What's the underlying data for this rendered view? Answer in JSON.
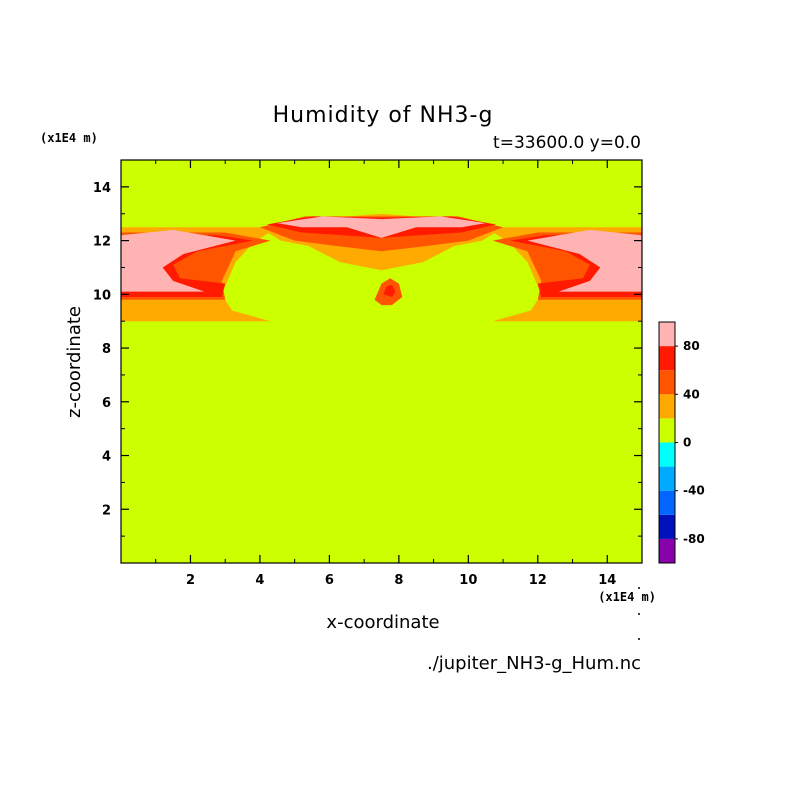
{
  "chart_data": {
    "type": "heatmap",
    "title": "Humidity of NH3-g",
    "subtitle": "t=33600.0 y=0.0",
    "xlabel": "x-coordinate",
    "ylabel": "z-coordinate",
    "x_unit": "(x1E4 m)",
    "y_unit": "(x1E4 m)",
    "xlim": [
      0,
      15
    ],
    "ylim": [
      0,
      15
    ],
    "x_ticks": [
      2,
      4,
      6,
      8,
      10,
      12,
      14
    ],
    "y_ticks": [
      2,
      4,
      6,
      8,
      10,
      12,
      14
    ],
    "background_level_color": "#ccff00",
    "regions": [
      {
        "level": "20-40",
        "color": "#ffaa00",
        "polygon": [
          [
            0,
            9.0
          ],
          [
            4.3,
            9.0
          ],
          [
            3.2,
            9.4
          ],
          [
            2.9,
            10.0
          ],
          [
            3.3,
            11.2
          ],
          [
            3.8,
            11.9
          ],
          [
            4.5,
            12.5
          ],
          [
            0,
            12.5
          ]
        ]
      },
      {
        "level": "20-40",
        "color": "#ffaa00",
        "polygon": [
          [
            15,
            9.0
          ],
          [
            10.7,
            9.0
          ],
          [
            11.8,
            9.4
          ],
          [
            12.1,
            10.0
          ],
          [
            11.7,
            11.2
          ],
          [
            11.2,
            11.9
          ],
          [
            10.5,
            12.5
          ],
          [
            15,
            12.5
          ]
        ]
      },
      {
        "level": "20-40",
        "color": "#ffaa00",
        "polygon": [
          [
            4.1,
            12.4
          ],
          [
            5.5,
            12.8
          ],
          [
            7.5,
            13.0
          ],
          [
            9.5,
            12.8
          ],
          [
            10.9,
            12.4
          ],
          [
            10.4,
            12.0
          ],
          [
            9.6,
            11.8
          ],
          [
            8.7,
            11.2
          ],
          [
            7.5,
            10.9
          ],
          [
            6.3,
            11.2
          ],
          [
            5.4,
            11.8
          ],
          [
            4.6,
            12.0
          ]
        ]
      },
      {
        "level": "40-60",
        "color": "#ff5500",
        "polygon": [
          [
            0,
            9.8
          ],
          [
            3.0,
            9.8
          ],
          [
            2.9,
            10.5
          ],
          [
            3.3,
            11.6
          ],
          [
            4.3,
            12.0
          ],
          [
            3.0,
            12.3
          ],
          [
            0,
            12.3
          ]
        ]
      },
      {
        "level": "40-60",
        "color": "#ff5500",
        "polygon": [
          [
            15,
            9.8
          ],
          [
            12.0,
            9.8
          ],
          [
            12.1,
            10.5
          ],
          [
            11.7,
            11.6
          ],
          [
            10.7,
            12.0
          ],
          [
            12.0,
            12.3
          ],
          [
            15,
            12.3
          ]
        ]
      },
      {
        "level": "40-60",
        "color": "#ff5500",
        "polygon": [
          [
            4.0,
            12.5
          ],
          [
            5.3,
            12.9
          ],
          [
            7.5,
            12.9
          ],
          [
            9.7,
            12.9
          ],
          [
            11.0,
            12.5
          ],
          [
            10.0,
            12.0
          ],
          [
            8.8,
            11.8
          ],
          [
            7.5,
            11.6
          ],
          [
            6.2,
            11.8
          ],
          [
            5.0,
            12.0
          ]
        ]
      },
      {
        "level": "60-80",
        "color": "#ff1a00",
        "polygon": [
          [
            0,
            9.9
          ],
          [
            2.9,
            9.9
          ],
          [
            3.0,
            10.4
          ],
          [
            1.7,
            10.6
          ],
          [
            1.5,
            11.1
          ],
          [
            2.2,
            11.6
          ],
          [
            3.8,
            12.0
          ],
          [
            2.8,
            12.2
          ],
          [
            0,
            12.2
          ]
        ]
      },
      {
        "level": "60-80",
        "color": "#ff1a00",
        "polygon": [
          [
            15,
            9.9
          ],
          [
            12.1,
            9.9
          ],
          [
            12.0,
            10.4
          ],
          [
            13.3,
            10.6
          ],
          [
            13.5,
            11.1
          ],
          [
            12.8,
            11.6
          ],
          [
            11.2,
            12.0
          ],
          [
            12.2,
            12.2
          ],
          [
            15,
            12.2
          ]
        ]
      },
      {
        "level": "60-80",
        "color": "#ff1a00",
        "polygon": [
          [
            4.2,
            12.6
          ],
          [
            5.5,
            12.9
          ],
          [
            7.5,
            12.85
          ],
          [
            9.5,
            12.9
          ],
          [
            10.8,
            12.6
          ],
          [
            9.8,
            12.3
          ],
          [
            8.6,
            12.2
          ],
          [
            7.5,
            12.1
          ],
          [
            6.4,
            12.2
          ],
          [
            5.2,
            12.3
          ]
        ]
      },
      {
        "level": "80-100",
        "color": "#ffb3b3",
        "polygon": [
          [
            0,
            10.1
          ],
          [
            2.4,
            10.1
          ],
          [
            1.5,
            10.5
          ],
          [
            1.2,
            11.0
          ],
          [
            1.8,
            11.5
          ],
          [
            3.3,
            12.0
          ],
          [
            1.5,
            12.4
          ],
          [
            0,
            12.2
          ]
        ]
      },
      {
        "level": "80-100",
        "color": "#ffb3b3",
        "polygon": [
          [
            15,
            10.1
          ],
          [
            12.6,
            10.1
          ],
          [
            13.5,
            10.5
          ],
          [
            13.8,
            11.0
          ],
          [
            13.2,
            11.5
          ],
          [
            11.7,
            12.0
          ],
          [
            13.5,
            12.4
          ],
          [
            15,
            12.2
          ]
        ]
      },
      {
        "level": "80-100",
        "color": "#ffb3b3",
        "polygon": [
          [
            4.5,
            12.65
          ],
          [
            5.8,
            12.9
          ],
          [
            7.5,
            12.8
          ],
          [
            9.2,
            12.9
          ],
          [
            10.5,
            12.65
          ],
          [
            9.8,
            12.5
          ],
          [
            8.5,
            12.5
          ],
          [
            7.5,
            12.1
          ],
          [
            6.5,
            12.5
          ],
          [
            5.2,
            12.5
          ]
        ]
      },
      {
        "level": "40-60",
        "color": "#ff5500",
        "polygon": [
          [
            7.3,
            9.8
          ],
          [
            7.5,
            10.4
          ],
          [
            7.75,
            10.6
          ],
          [
            8.0,
            10.4
          ],
          [
            8.1,
            9.9
          ],
          [
            7.8,
            9.6
          ],
          [
            7.5,
            9.6
          ]
        ]
      },
      {
        "level": "60-80",
        "color": "#ff1a00",
        "polygon": [
          [
            7.55,
            10.0
          ],
          [
            7.65,
            10.3
          ],
          [
            7.8,
            10.35
          ],
          [
            7.9,
            10.1
          ],
          [
            7.8,
            9.9
          ]
        ]
      }
    ],
    "colorbar": {
      "levels": [
        -100,
        -80,
        -60,
        -40,
        -20,
        0,
        20,
        40,
        60,
        80,
        100
      ],
      "colors": [
        "#8800aa",
        "#0011bb",
        "#0066ff",
        "#00aaff",
        "#00ffff",
        "#ccff00",
        "#ffaa00",
        "#ff5500",
        "#ff1a00",
        "#ffb3b3"
      ],
      "labels": [
        "80",
        "40",
        "0",
        "-40",
        "-80"
      ],
      "label_values": [
        80,
        40,
        0,
        -40,
        -80
      ]
    },
    "source_file": "./jupiter_NH3-g_Hum.nc"
  }
}
